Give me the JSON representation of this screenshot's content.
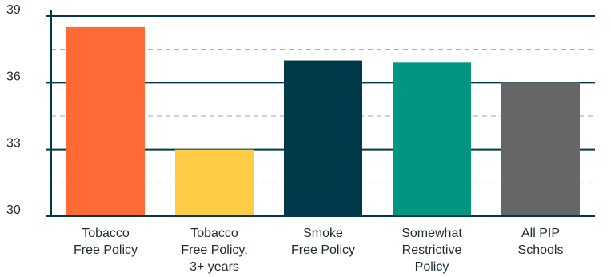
{
  "chart_data": {
    "type": "bar",
    "title": "",
    "xlabel": "",
    "ylabel": "",
    "categories": [
      [
        "Tobacco",
        "Free Policy"
      ],
      [
        "Tobacco",
        "Free Policy,",
        "3+ years"
      ],
      [
        "Smoke",
        "Free Policy"
      ],
      [
        "Somewhat",
        "Restrictive",
        "Policy"
      ],
      [
        "All PIP",
        "Schools"
      ]
    ],
    "values": [
      38.5,
      33.0,
      37.0,
      36.9,
      36.0
    ],
    "colors": [
      "#ff6a35",
      "#ffcd45",
      "#003a4a",
      "#009681",
      "#666666"
    ],
    "ylim": [
      30,
      39
    ],
    "yticks": [
      30,
      33,
      36,
      39
    ],
    "minor_gridlines": [
      31.5,
      34.5,
      37.5
    ],
    "grid": true,
    "axis_color": "#003a4a",
    "grid_dash_color": "#9aa6ad"
  }
}
